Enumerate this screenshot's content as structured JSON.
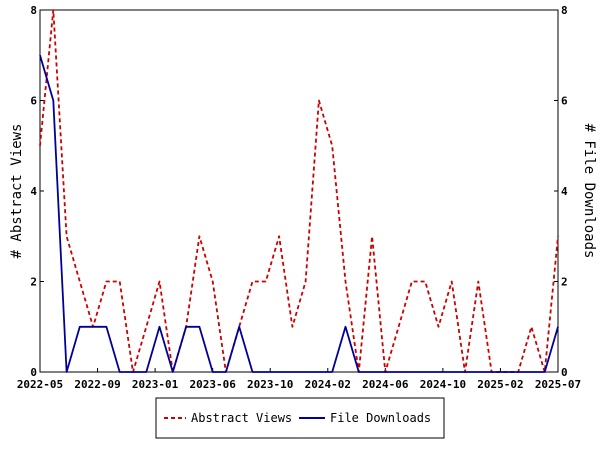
{
  "chart_data": {
    "type": "line",
    "title": "",
    "ylabel_left": "# Abstract Views",
    "ylabel_right": "# File Downloads",
    "ylim": [
      0,
      8
    ],
    "yticks": [
      0,
      2,
      4,
      6,
      8
    ],
    "xtick_labels": [
      "2022-05",
      "2022-09",
      "2023-01",
      "2023-06",
      "2023-10",
      "2024-02",
      "2024-06",
      "2024-10",
      "2025-02",
      "2025-07"
    ],
    "legend_position": "bottom",
    "series": [
      {
        "name": "Abstract Views",
        "color": "#cc0000",
        "style": "dashed",
        "values": [
          5,
          8,
          3,
          2,
          1,
          2,
          2,
          0,
          1,
          2,
          0,
          1,
          3,
          2,
          0,
          1,
          2,
          2,
          3,
          1,
          2,
          6,
          5,
          2,
          0,
          3,
          0,
          1,
          2,
          2,
          1,
          2,
          0,
          2,
          0,
          0,
          0,
          1,
          0,
          3
        ]
      },
      {
        "name": "File Downloads",
        "color": "#000099",
        "style": "solid",
        "values": [
          7,
          6,
          0,
          1,
          1,
          1,
          0,
          0,
          0,
          1,
          0,
          1,
          1,
          0,
          0,
          1,
          0,
          0,
          0,
          0,
          0,
          0,
          0,
          1,
          0,
          0,
          0,
          0,
          0,
          0,
          0,
          0,
          0,
          0,
          0,
          0,
          0,
          0,
          0,
          1
        ]
      }
    ]
  }
}
